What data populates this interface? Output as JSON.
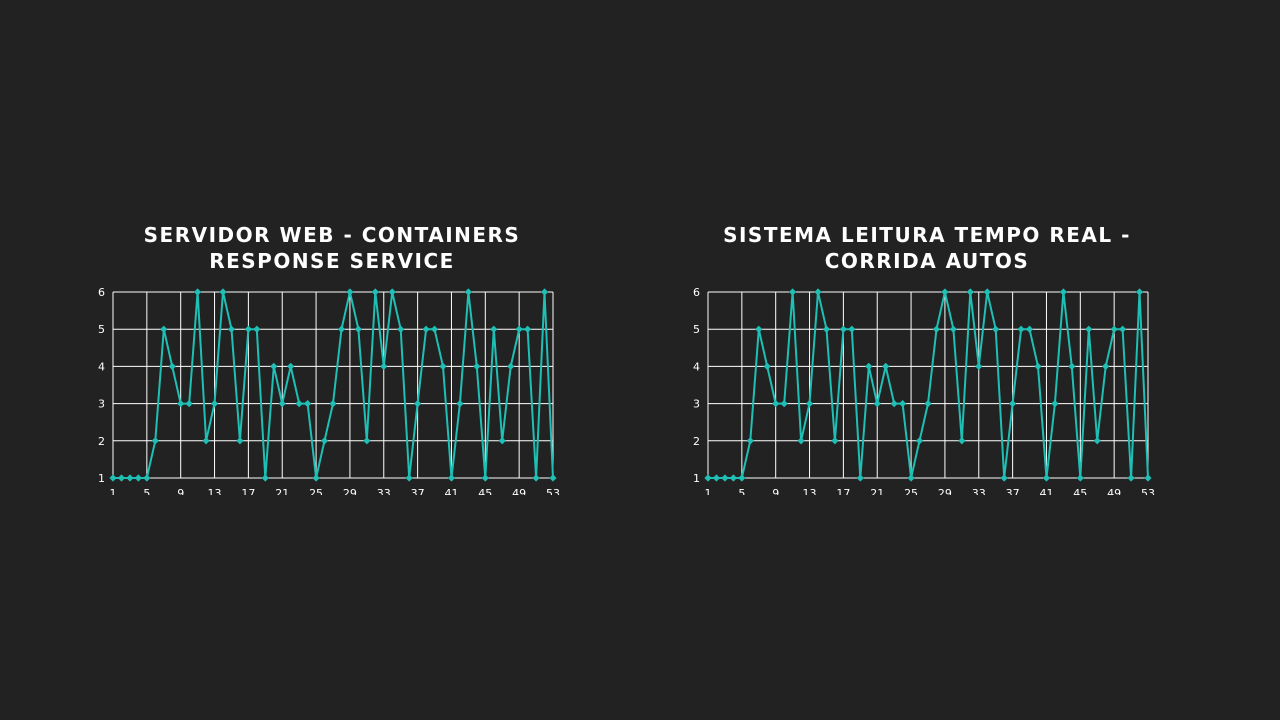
{
  "colors": {
    "background": "#222222",
    "series": "#1fbfb5",
    "grid": "#ffffff",
    "text": "#ffffff"
  },
  "chart_data": [
    {
      "type": "line",
      "title_lines": [
        "SERVIDOR WEB - CONTAINERS",
        "RESPONSE SERVICE"
      ],
      "xlabel": "",
      "ylabel": "",
      "x_tick_labels": [
        "1",
        "5",
        "9",
        "13",
        "17",
        "21",
        "25",
        "29",
        "33",
        "37",
        "41",
        "45",
        "49",
        "53"
      ],
      "y_tick_labels": [
        "1",
        "2",
        "3",
        "4",
        "5",
        "6"
      ],
      "xlim": [
        1,
        53
      ],
      "ylim": [
        1,
        6
      ],
      "grid": true,
      "legend": "none",
      "marker": "diamond",
      "series": [
        {
          "x": [
            1,
            2,
            3,
            4,
            5,
            6,
            7,
            8,
            9,
            10,
            11,
            12,
            13,
            14,
            15,
            16,
            17,
            18,
            19,
            20,
            21,
            22,
            23,
            24,
            25,
            26,
            27,
            28,
            29,
            30,
            31,
            32,
            33,
            34,
            35,
            36,
            37,
            38,
            39,
            40,
            41,
            42,
            43,
            44,
            45,
            46,
            47,
            48,
            49,
            50,
            51,
            52,
            53
          ],
          "values": [
            1,
            1,
            1,
            1,
            1,
            2,
            5,
            4,
            3,
            3,
            6,
            2,
            3,
            6,
            5,
            2,
            5,
            5,
            1,
            4,
            3,
            4,
            3,
            3,
            1,
            2,
            3,
            5,
            6,
            5,
            2,
            6,
            4,
            6,
            5,
            1,
            3,
            5,
            5,
            4,
            1,
            3,
            6,
            4,
            1,
            5,
            2,
            4,
            5,
            5,
            1,
            6,
            1
          ]
        }
      ]
    },
    {
      "type": "line",
      "title_lines": [
        "SISTEMA LEITURA TEMPO REAL -",
        "CORRIDA AUTOS"
      ],
      "xlabel": "",
      "ylabel": "",
      "x_tick_labels": [
        "1",
        "5",
        "9",
        "13",
        "17",
        "21",
        "25",
        "29",
        "33",
        "37",
        "41",
        "45",
        "49",
        "53"
      ],
      "y_tick_labels": [
        "1",
        "2",
        "3",
        "4",
        "5",
        "6"
      ],
      "xlim": [
        1,
        53
      ],
      "ylim": [
        1,
        6
      ],
      "grid": true,
      "legend": "none",
      "marker": "diamond",
      "series": [
        {
          "x": [
            1,
            2,
            3,
            4,
            5,
            6,
            7,
            8,
            9,
            10,
            11,
            12,
            13,
            14,
            15,
            16,
            17,
            18,
            19,
            20,
            21,
            22,
            23,
            24,
            25,
            26,
            27,
            28,
            29,
            30,
            31,
            32,
            33,
            34,
            35,
            36,
            37,
            38,
            39,
            40,
            41,
            42,
            43,
            44,
            45,
            46,
            47,
            48,
            49,
            50,
            51,
            52,
            53
          ],
          "values": [
            1,
            1,
            1,
            1,
            1,
            2,
            5,
            4,
            3,
            3,
            6,
            2,
            3,
            6,
            5,
            2,
            5,
            5,
            1,
            4,
            3,
            4,
            3,
            3,
            1,
            2,
            3,
            5,
            6,
            5,
            2,
            6,
            4,
            6,
            5,
            1,
            3,
            5,
            5,
            4,
            1,
            3,
            6,
            4,
            1,
            5,
            2,
            4,
            5,
            5,
            1,
            6,
            1
          ]
        }
      ]
    }
  ]
}
